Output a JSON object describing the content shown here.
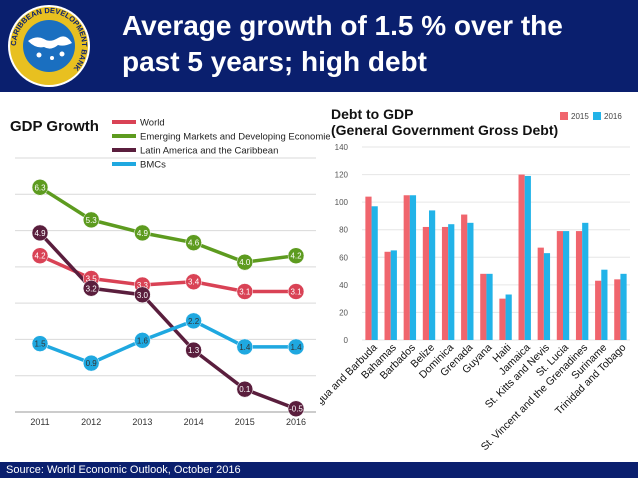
{
  "slide": {
    "title_line1": "Average growth of 1.5 % over the",
    "title_line2": "past 5 years; high debt",
    "logo_text": "CARIBBEAN DEVELOPMENT BANK",
    "source": "Source: World Economic Outlook, October 2016"
  },
  "chart_data": [
    {
      "type": "line",
      "title": "GDP Growth",
      "categories": [
        "2011",
        "2012",
        "2013",
        "2014",
        "2015",
        "2016"
      ],
      "ylim": [
        -0.6,
        7.2
      ],
      "legend_position": "top-right",
      "series": [
        {
          "name": "World",
          "color": "#d94255",
          "values": [
            4.2,
            3.5,
            3.3,
            3.4,
            3.1,
            3.1
          ],
          "labels": [
            "4.2",
            "3.5",
            "3.3",
            "3.4",
            "3.1",
            "3.1"
          ]
        },
        {
          "name": "Emerging Markets and Developing Economies",
          "color": "#5d9b1f",
          "values": [
            6.3,
            5.3,
            4.9,
            4.6,
            4.0,
            4.2
          ],
          "labels": [
            "6.3",
            "5.3",
            "4.9",
            "4.6",
            "4.0",
            "4.2"
          ]
        },
        {
          "name": "Latin America and the Caribbean",
          "color": "#5a1e3d",
          "values": [
            4.9,
            3.2,
            3.0,
            1.3,
            0.1,
            -0.5
          ],
          "labels": [
            "4.9",
            "3.2",
            "3.0",
            "1.3",
            "0.1",
            "-0.5"
          ]
        },
        {
          "name": "BMCs",
          "color": "#1fa8e0",
          "values": [
            1.5,
            0.9,
            1.6,
            2.2,
            1.4,
            1.4
          ],
          "labels": [
            "1.5",
            "0.9",
            "1.6",
            "2.2",
            "1.4",
            "1.4"
          ]
        }
      ]
    },
    {
      "type": "bar",
      "title": "Debt to GDP",
      "subtitle": "(General Government Gross Debt)",
      "ylim": [
        0,
        140
      ],
      "yticks": [
        "0",
        "20",
        "40",
        "60",
        "80",
        "100",
        "120",
        "140"
      ],
      "legend_position": "top-right",
      "categories": [
        "Antigua and Barbuda",
        "Bahamas",
        "Barbados",
        "Belize",
        "Dominica",
        "Grenada",
        "Guyana",
        "Haiti",
        "Jamaica",
        "St. Kitts and Nevis",
        "St. Lucia",
        "St. Vincent and the Grenadines",
        "Suriname",
        "Trinidad and Tobago"
      ],
      "series": [
        {
          "name": "2015",
          "color": "#f0656d",
          "values": [
            104,
            64,
            105,
            82,
            82,
            91,
            48,
            30,
            120,
            67,
            79,
            79,
            43,
            44
          ]
        },
        {
          "name": "2016",
          "color": "#22b3e8",
          "values": [
            97,
            65,
            105,
            94,
            84,
            85,
            48,
            33,
            119,
            63,
            79,
            85,
            51,
            48
          ]
        }
      ]
    }
  ]
}
